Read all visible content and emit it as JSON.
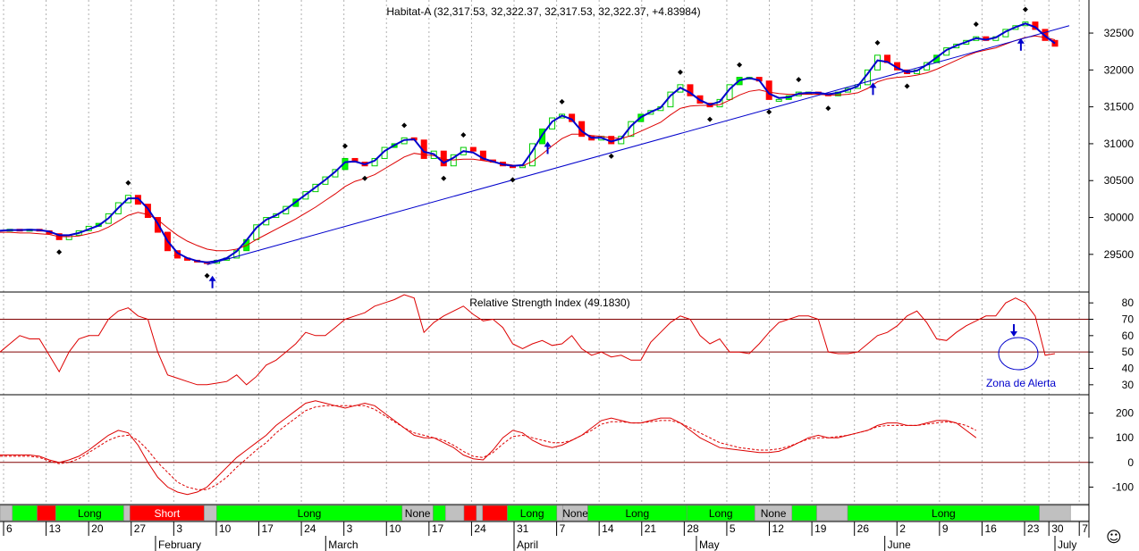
{
  "chart_data": [
    {
      "type": "line",
      "panel": "price",
      "title": "Habitat-A (32,317.53, 32,322.37, 32,317.53, 32,322.37, +4.83984)",
      "y_ticks": [
        29500,
        30000,
        30500,
        31000,
        31500,
        32000,
        32500
      ],
      "ylim": [
        29050,
        32900
      ],
      "series": [
        {
          "key": "close",
          "values": [
            29820,
            29840,
            29830,
            29840,
            29820,
            29780,
            29700,
            29760,
            29820,
            29880,
            29920,
            30050,
            30200,
            30300,
            30180,
            30000,
            29800,
            29550,
            29450,
            29420,
            29400,
            29380,
            29420,
            29450,
            29550,
            29700,
            29900,
            30000,
            30050,
            30150,
            30250,
            30350,
            30450,
            30550,
            30650,
            30800,
            30750,
            30700,
            30800,
            30950,
            31000,
            31080,
            31050,
            30800,
            30900,
            30700,
            30850,
            30950,
            30900,
            30780,
            30750,
            30700,
            30680,
            30700,
            31000,
            31200,
            31350,
            31400,
            31300,
            31100,
            31050,
            31100,
            31000,
            31100,
            31300,
            31400,
            31450,
            31500,
            31700,
            31800,
            31650,
            31550,
            31500,
            31600,
            31800,
            31900,
            31900,
            31850,
            31600,
            31600,
            31650,
            31700,
            31700,
            31680,
            31650,
            31700,
            31750,
            31800,
            32000,
            32200,
            32100,
            32000,
            31950,
            32000,
            32100,
            32200,
            32300,
            32350,
            32400,
            32450,
            32400,
            32450,
            32550,
            32600,
            32650,
            32550,
            32400,
            32322
          ]
        },
        {
          "key": "ma_fast",
          "color": "#0000cc",
          "values": [
            29820,
            29830,
            29830,
            29835,
            29830,
            29810,
            29760,
            29760,
            29790,
            29840,
            29890,
            29990,
            30130,
            30260,
            30260,
            30120,
            29920,
            29680,
            29520,
            29450,
            29410,
            29390,
            29410,
            29450,
            29540,
            29690,
            29860,
            29970,
            30030,
            30110,
            30210,
            30310,
            30410,
            30510,
            30620,
            30750,
            30760,
            30720,
            30770,
            30900,
            30980,
            31050,
            31060,
            30890,
            30860,
            30740,
            30810,
            30900,
            30880,
            30800,
            30760,
            30720,
            30700,
            30710,
            30900,
            31120,
            31300,
            31380,
            31330,
            31170,
            31080,
            31080,
            31030,
            31070,
            31240,
            31360,
            31430,
            31490,
            31650,
            31760,
            31690,
            31590,
            31530,
            31570,
            31740,
            31860,
            31890,
            31860,
            31680,
            31620,
            31630,
            31680,
            31690,
            31690,
            31670,
            31690,
            31730,
            31780,
            31950,
            32130,
            32110,
            32030,
            31970,
            31990,
            32070,
            32170,
            32270,
            32330,
            32380,
            32430,
            32410,
            32440,
            32520,
            32580,
            32630,
            32580,
            32460,
            32360
          ]
        },
        {
          "key": "ma_slow",
          "color": "#dd0000",
          "values": [
            29800,
            29800,
            29790,
            29790,
            29780,
            29770,
            29740,
            29740,
            29750,
            29780,
            29810,
            29870,
            29950,
            30030,
            30070,
            30040,
            29970,
            29860,
            29760,
            29680,
            29620,
            29570,
            29550,
            29550,
            29570,
            29620,
            29700,
            29770,
            29840,
            29910,
            29980,
            30060,
            30140,
            30230,
            30320,
            30420,
            30490,
            30530,
            30580,
            30660,
            30740,
            30820,
            30870,
            30850,
            30840,
            30790,
            30780,
            30790,
            30790,
            30770,
            30750,
            30730,
            30710,
            30700,
            30760,
            30860,
            30970,
            31070,
            31130,
            31130,
            31110,
            31100,
            31080,
            31070,
            31110,
            31170,
            31230,
            31290,
            31390,
            31480,
            31510,
            31520,
            31520,
            31530,
            31590,
            31660,
            31710,
            31730,
            31700,
            31680,
            31670,
            31670,
            31670,
            31670,
            31660,
            31660,
            31670,
            31690,
            31750,
            31840,
            31880,
            31900,
            31910,
            31930,
            31960,
            32010,
            32070,
            32130,
            32190,
            32240,
            32270,
            32300,
            32350,
            32400,
            32440,
            32460,
            32440,
            32410
          ]
        }
      ]
    },
    {
      "type": "line",
      "panel": "rsi",
      "title": "Relative Strength Index (49.1830)",
      "y_ticks": [
        30,
        40,
        50,
        60,
        70,
        80
      ],
      "ylim": [
        25,
        85
      ],
      "reference_lines": [
        50,
        70
      ],
      "annotation": "Zona de Alerta",
      "series": [
        {
          "key": "rsi",
          "color": "#dd0000",
          "values": [
            50,
            55,
            60,
            58,
            58,
            48,
            38,
            50,
            58,
            60,
            60,
            70,
            75,
            77,
            72,
            70,
            50,
            36,
            34,
            32,
            30,
            30,
            31,
            32,
            36,
            30,
            35,
            42,
            45,
            50,
            55,
            62,
            60,
            60,
            65,
            70,
            72,
            74,
            78,
            80,
            82,
            85,
            83,
            62,
            68,
            72,
            75,
            78,
            73,
            69,
            70,
            65,
            55,
            52,
            55,
            57,
            54,
            55,
            60,
            52,
            48,
            50,
            47,
            48,
            45,
            45,
            56,
            62,
            68,
            72,
            70,
            60,
            55,
            58,
            50,
            50,
            49,
            55,
            62,
            68,
            70,
            72,
            72,
            70,
            50,
            49,
            49,
            50,
            55,
            60,
            62,
            66,
            72,
            75,
            68,
            58,
            57,
            62,
            66,
            69,
            72,
            72,
            80,
            83,
            80,
            72,
            48,
            49
          ]
        }
      ]
    },
    {
      "type": "line",
      "panel": "oscillator",
      "y_ticks": [
        -100,
        0,
        100,
        200
      ],
      "ylim": [
        -160,
        260
      ],
      "reference_lines": [
        0
      ],
      "series": [
        {
          "key": "osc",
          "color": "#dd0000",
          "values": [
            30,
            30,
            30,
            30,
            25,
            10,
            0,
            10,
            25,
            50,
            80,
            110,
            130,
            120,
            70,
            0,
            -60,
            -100,
            -120,
            -130,
            -120,
            -100,
            -60,
            -20,
            20,
            50,
            80,
            110,
            150,
            180,
            210,
            240,
            250,
            240,
            230,
            220,
            230,
            240,
            230,
            200,
            170,
            140,
            110,
            100,
            100,
            80,
            60,
            30,
            15,
            10,
            50,
            100,
            130,
            120,
            90,
            70,
            60,
            70,
            90,
            110,
            140,
            170,
            180,
            170,
            160,
            160,
            170,
            180,
            180,
            160,
            130,
            100,
            80,
            60,
            55,
            50,
            45,
            40,
            40,
            45,
            60,
            80,
            100,
            110,
            100,
            100,
            110,
            120,
            130,
            150,
            160,
            160,
            150,
            150,
            160,
            170,
            170,
            160,
            130,
            100
          ]
        },
        {
          "key": "osc_signal",
          "color": "#dd0000",
          "dashed": true,
          "values": [
            25,
            25,
            25,
            25,
            20,
            5,
            -5,
            0,
            15,
            40,
            65,
            90,
            105,
            110,
            90,
            50,
            0,
            -40,
            -80,
            -100,
            -110,
            -110,
            -90,
            -60,
            -20,
            15,
            50,
            80,
            120,
            150,
            180,
            210,
            225,
            230,
            230,
            230,
            230,
            230,
            215,
            190,
            165,
            140,
            120,
            110,
            100,
            90,
            70,
            45,
            25,
            20,
            40,
            75,
            105,
            110,
            100,
            90,
            80,
            80,
            90,
            110,
            130,
            155,
            165,
            165,
            160,
            160,
            165,
            170,
            170,
            160,
            140,
            120,
            100,
            80,
            70,
            60,
            55,
            50,
            50,
            55,
            65,
            80,
            95,
            100,
            100,
            105,
            110,
            120,
            130,
            145,
            150,
            150,
            150,
            150,
            155,
            160,
            165,
            160,
            150,
            130
          ]
        }
      ]
    }
  ],
  "signal_bar": [
    {
      "label": "",
      "color": "#c0c0c0",
      "span": 2
    },
    {
      "label": "",
      "color": "#00ff00",
      "span": 4
    },
    {
      "label": "",
      "color": "#ff0000",
      "span": 3
    },
    {
      "label": "Long",
      "color": "#00ff00",
      "span": 11
    },
    {
      "label": "",
      "color": "#c0c0c0",
      "span": 1
    },
    {
      "label": "Short",
      "color": "#ff0000",
      "span": 12
    },
    {
      "label": "",
      "color": "#c0c0c0",
      "span": 2
    },
    {
      "label": "Long",
      "color": "#00ff00",
      "span": 30
    },
    {
      "label": "None",
      "color": "#c0c0c0",
      "span": 5
    },
    {
      "label": "",
      "color": "#00ff00",
      "span": 2
    },
    {
      "label": "",
      "color": "#c0c0c0",
      "span": 3
    },
    {
      "label": "",
      "color": "#ff0000",
      "span": 2
    },
    {
      "label": "",
      "color": "#c0c0c0",
      "span": 1
    },
    {
      "label": "",
      "color": "#ff0000",
      "span": 4
    },
    {
      "label": "Long",
      "color": "#00ff00",
      "span": 8
    },
    {
      "label": "",
      "color": "#c0c0c0",
      "span": 1
    },
    {
      "label": "None",
      "color": "#c0c0c0",
      "span": 4
    },
    {
      "label": "Long",
      "color": "#00ff00",
      "span": 16
    },
    {
      "label": "Long",
      "color": "#00ff00",
      "span": 11
    },
    {
      "label": "None",
      "color": "#c0c0c0",
      "span": 6
    },
    {
      "label": "",
      "color": "#00ff00",
      "span": 4
    },
    {
      "label": "",
      "color": "#c0c0c0",
      "span": 5
    },
    {
      "label": "Long",
      "color": "#00ff00",
      "span": 31
    },
    {
      "label": "",
      "color": "#c0c0c0",
      "span": 5
    },
    {
      "label": "",
      "color": "#ffffff",
      "span": 3
    }
  ],
  "x_axis": {
    "day_ticks": [
      {
        "day": "6",
        "pos": 0
      },
      {
        "day": "13",
        "pos": 7
      },
      {
        "day": "20",
        "pos": 14
      },
      {
        "day": "27",
        "pos": 21
      },
      {
        "day": "3",
        "pos": 28
      },
      {
        "day": "10",
        "pos": 35
      },
      {
        "day": "17",
        "pos": 42
      },
      {
        "day": "24",
        "pos": 49
      },
      {
        "day": "3",
        "pos": 56
      },
      {
        "day": "10",
        "pos": 63
      },
      {
        "day": "17",
        "pos": 70
      },
      {
        "day": "24",
        "pos": 77
      },
      {
        "day": "31",
        "pos": 84
      },
      {
        "day": "7",
        "pos": 91
      },
      {
        "day": "14",
        "pos": 98
      },
      {
        "day": "21",
        "pos": 105
      },
      {
        "day": "28",
        "pos": 112
      },
      {
        "day": "5",
        "pos": 119
      },
      {
        "day": "12",
        "pos": 126
      },
      {
        "day": "19",
        "pos": 133
      },
      {
        "day": "26",
        "pos": 140
      },
      {
        "day": "2",
        "pos": 147
      },
      {
        "day": "9",
        "pos": 154
      },
      {
        "day": "16",
        "pos": 161
      },
      {
        "day": "23",
        "pos": 168
      },
      {
        "day": "30",
        "pos": 172
      },
      {
        "day": "7",
        "pos": 177
      }
    ],
    "months": [
      {
        "name": "February",
        "pos": 25
      },
      {
        "name": "March",
        "pos": 53
      },
      {
        "name": "April",
        "pos": 84
      },
      {
        "name": "May",
        "pos": 114
      },
      {
        "name": "June",
        "pos": 145
      },
      {
        "name": "July",
        "pos": 173
      }
    ]
  },
  "smiley": "☺"
}
